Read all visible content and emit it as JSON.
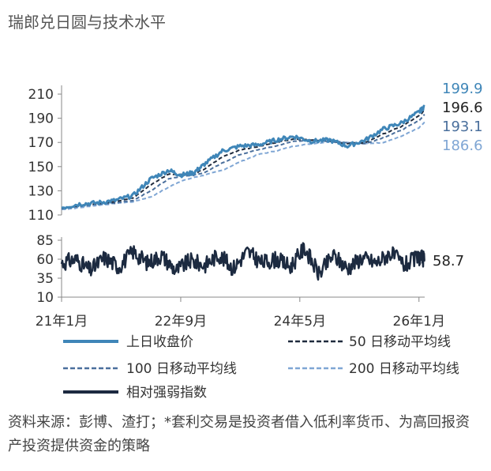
{
  "title": "瑞郎兑日圆与技术水平",
  "source": "资料来源：彭博、渣打；*套利交易是投资者借入低利率货币、为高回报资产投资提供资金的策略",
  "colors": {
    "price": "#3f86b8",
    "ma50": "#1f2b3d",
    "ma100": "#4a6f9c",
    "ma200": "#7fa6d4",
    "rsi": "#1c2a40"
  },
  "chart_data": [
    {
      "type": "line",
      "title": "",
      "y_ticks": [
        110,
        130,
        150,
        170,
        190,
        210
      ],
      "ylim": [
        110,
        212
      ],
      "x_ticks": [
        "21年1月",
        "22年9月",
        "24年5月",
        "26年1月"
      ],
      "x_tick_positions": [
        2021.0,
        2022.667,
        2024.333,
        2026.0
      ],
      "xlim": [
        2021.0,
        2026.08
      ],
      "x": [
        2021.0,
        2021.25,
        2021.5,
        2021.75,
        2022.0,
        2022.25,
        2022.5,
        2022.667,
        2022.85,
        2023.0,
        2023.25,
        2023.5,
        2023.75,
        2024.0,
        2024.25,
        2024.5,
        2024.75,
        2025.0,
        2025.25,
        2025.5,
        2025.75,
        2026.0,
        2026.08
      ],
      "series": [
        {
          "name": "上日收盘价",
          "style": "solid",
          "values": [
            116,
            119,
            120,
            122,
            126,
            140,
            147,
            143,
            145,
            152,
            163,
            167,
            168,
            172,
            175,
            171,
            172,
            167,
            172,
            181,
            186,
            195,
            199.9
          ]
        },
        {
          "name": "50 日移动平均线",
          "style": "dashed",
          "values": [
            115.5,
            118,
            119.5,
            121,
            124,
            135,
            144,
            143.5,
            144,
            148,
            158,
            164,
            166.5,
            170,
            173,
            172,
            171,
            169,
            170,
            177,
            183,
            192,
            196.6
          ]
        },
        {
          "name": "100 日移动平均线",
          "style": "dashed",
          "values": [
            115,
            117,
            119,
            120,
            122,
            130,
            140,
            142,
            143,
            145,
            153,
            160,
            164,
            167,
            171,
            172,
            171,
            170,
            169,
            174,
            180,
            188,
            193.1
          ]
        },
        {
          "name": "200 日移动平均线",
          "style": "dashed",
          "values": [
            114.5,
            116,
            118,
            119.5,
            121,
            125,
            133,
            138,
            141,
            143,
            147,
            154,
            160,
            163,
            167,
            169,
            170.5,
            170,
            169,
            170,
            175,
            182,
            186.6
          ]
        }
      ],
      "end_labels": [
        "199.9",
        "196.6",
        "193.1",
        "186.6"
      ]
    },
    {
      "type": "line",
      "title": "",
      "y_ticks": [
        10,
        35,
        60,
        85
      ],
      "ylim": [
        10,
        85
      ],
      "xlim": [
        2021.0,
        2026.08
      ],
      "x": [
        2021.0,
        2021.2,
        2021.4,
        2021.6,
        2021.8,
        2022.0,
        2022.2,
        2022.4,
        2022.6,
        2022.8,
        2023.0,
        2023.2,
        2023.4,
        2023.6,
        2023.8,
        2024.0,
        2024.2,
        2024.4,
        2024.6,
        2024.8,
        2025.0,
        2025.2,
        2025.4,
        2025.6,
        2025.8,
        2026.0,
        2026.08
      ],
      "series": [
        {
          "name": "相对强弱指数",
          "style": "solid",
          "values": [
            55,
            60,
            45,
            62,
            50,
            70,
            55,
            65,
            45,
            58,
            52,
            66,
            48,
            70,
            55,
            60,
            50,
            75,
            40,
            65,
            48,
            62,
            55,
            68,
            52,
            63,
            58.7
          ]
        }
      ],
      "end_labels": [
        "58.7"
      ]
    }
  ]
}
